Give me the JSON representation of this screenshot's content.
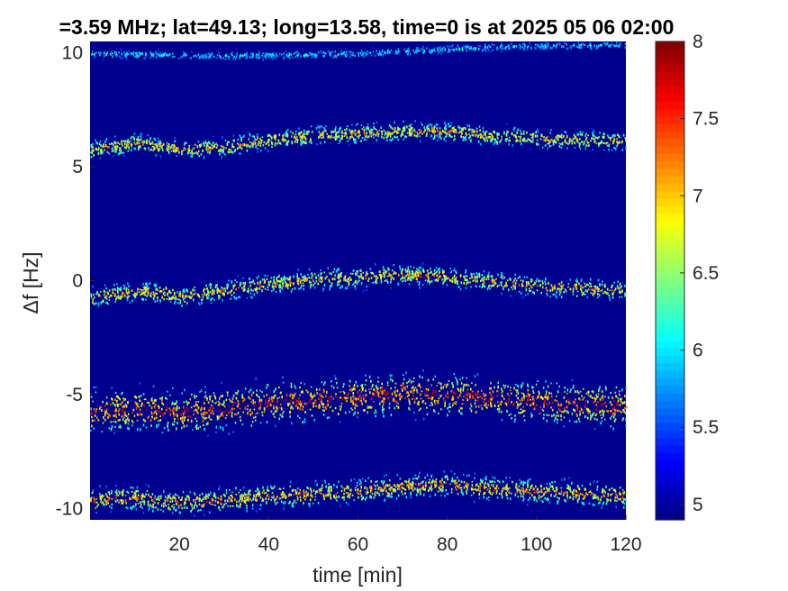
{
  "chart_data": {
    "type": "heatmap",
    "title": "=3.59 MHz;  lat=49.13; long=13.58, time=0 is at 2025 05 06 02:00",
    "xlabel": "time [min]",
    "ylabel": "Δf [Hz]",
    "xlim": [
      0,
      120
    ],
    "ylim": [
      -10.5,
      10.5
    ],
    "xticks": [
      20,
      40,
      60,
      80,
      100,
      120
    ],
    "yticks": [
      10,
      5,
      0,
      -5,
      -10
    ],
    "xtick_labels": [
      "20",
      "40",
      "60",
      "80",
      "100",
      "120"
    ],
    "ytick_labels": [
      "10",
      "5",
      "0",
      "-5",
      "-10"
    ],
    "colorbar": {
      "range": [
        4.9,
        8
      ],
      "ticks": [
        5,
        5.5,
        6,
        6.5,
        7,
        7.5,
        8
      ],
      "tick_labels": [
        "5",
        "5.5",
        "6",
        "6.5",
        "7",
        "7.5",
        "8"
      ],
      "colormap": "jet"
    },
    "background_color": "#00008f",
    "bands": [
      {
        "name": "",
        "time": [
          0,
          10,
          20,
          30,
          40,
          50,
          60,
          70,
          80,
          90,
          100,
          110,
          120
        ],
        "delta_f": [
          -9.6,
          -9.5,
          -9.7,
          -9.6,
          -9.4,
          -9.3,
          -9.2,
          -9.0,
          -8.9,
          -9.1,
          -9.2,
          -9.3,
          -9.4
        ],
        "spread": 0.45,
        "intensity": 0.65
      },
      {
        "name": "",
        "time": [
          0,
          10,
          20,
          30,
          40,
          50,
          60,
          70,
          80,
          90,
          100,
          110,
          120
        ],
        "delta_f": [
          -5.7,
          -5.6,
          -5.7,
          -5.6,
          -5.3,
          -5.2,
          -5.1,
          -4.9,
          -5.0,
          -5.1,
          -5.3,
          -5.4,
          -5.5
        ],
        "spread": 0.8,
        "intensity": 0.8
      },
      {
        "name": "",
        "time": [
          0,
          10,
          20,
          30,
          40,
          50,
          60,
          70,
          80,
          90,
          100,
          110,
          120
        ],
        "delta_f": [
          -0.7,
          -0.4,
          -0.6,
          -0.4,
          -0.1,
          0.1,
          0.2,
          0.3,
          0.2,
          0.0,
          -0.2,
          -0.3,
          -0.4
        ],
        "spread": 0.4,
        "intensity": 0.6
      },
      {
        "name": "",
        "time": [
          0,
          10,
          20,
          30,
          40,
          50,
          60,
          70,
          80,
          90,
          100,
          110,
          120
        ],
        "delta_f": [
          5.8,
          6.1,
          5.8,
          5.9,
          6.2,
          6.4,
          6.5,
          6.6,
          6.6,
          6.4,
          6.3,
          6.2,
          6.2
        ],
        "spread": 0.35,
        "intensity": 0.6
      },
      {
        "name": "",
        "time": [
          0,
          30,
          60,
          90,
          120
        ],
        "delta_f": [
          10.0,
          9.9,
          10.0,
          10.3,
          10.4
        ],
        "spread": 0.15,
        "intensity": 0.25
      }
    ]
  }
}
